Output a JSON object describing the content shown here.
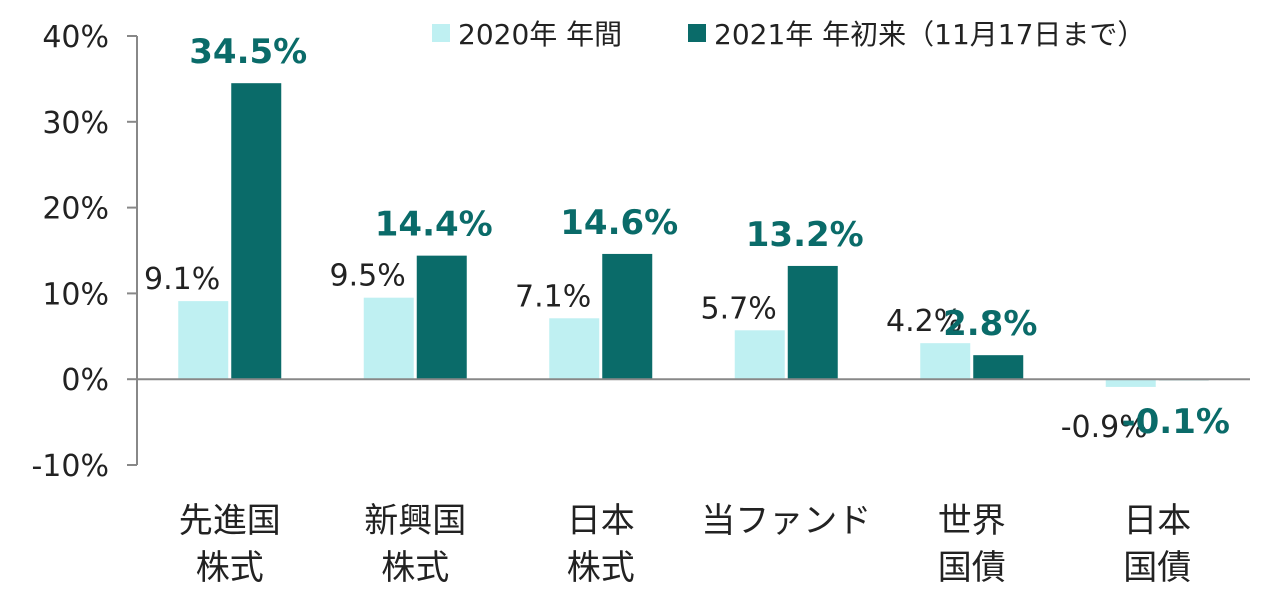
{
  "chart_data": {
    "type": "bar",
    "categories": [
      [
        "先進国",
        "株式"
      ],
      [
        "新興国",
        "株式"
      ],
      [
        "日本",
        "株式"
      ],
      [
        "当ファンド"
      ],
      [
        "世界",
        "国債"
      ],
      [
        "日本",
        "国債"
      ]
    ],
    "series": [
      {
        "name": "2020年 年間",
        "values": [
          9.1,
          9.5,
          7.1,
          5.7,
          4.2,
          -0.9
        ],
        "labels": [
          "9.1%",
          "9.5%",
          "7.1%",
          "5.7%",
          "4.2%",
          "-0.9%"
        ],
        "color": "#bff0f2"
      },
      {
        "name": "2021年 年初来（11月17日まで）",
        "values": [
          34.5,
          14.4,
          14.6,
          13.2,
          2.8,
          -0.1
        ],
        "labels": [
          "34.5%",
          "14.4%",
          "14.6%",
          "13.2%",
          "2.8%",
          "-0.1%"
        ],
        "color": "#0a6b69"
      }
    ],
    "yticks": [
      "40%",
      "30%",
      "20%",
      "10%",
      "0%",
      "-10%"
    ],
    "ylim": [
      -10,
      40
    ],
    "legend_position": "top-right",
    "grid": false
  }
}
